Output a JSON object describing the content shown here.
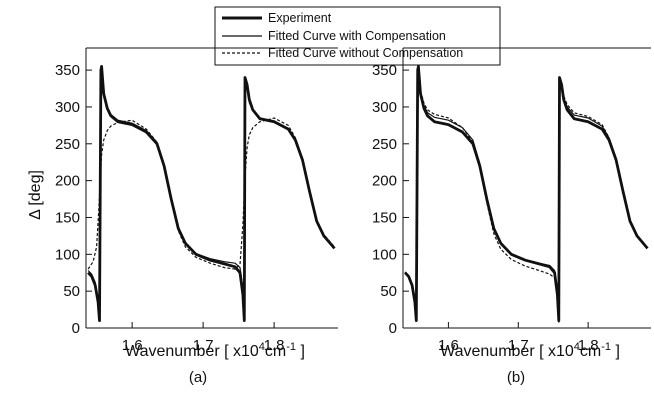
{
  "figure": {
    "legend": {
      "placement": "top-center",
      "entries": [
        {
          "label": "Experiment",
          "style": "thick-solid"
        },
        {
          "label": "Fitted Curve with Compensation",
          "style": "thin-solid"
        },
        {
          "label": "Fitted Curve without Compensation",
          "style": "dashed"
        }
      ]
    },
    "ylabel": "Δ [deg]",
    "xlabel_main": "Wavenumber [ x10",
    "xlabel_exp": "4",
    "xlabel_unit": "cm",
    "xlabel_unit_exp": "-1",
    "xlabel_close": "]"
  },
  "chart_data": [
    {
      "type": "line",
      "panel_label": "(a)",
      "xlim": [
        1.535,
        1.89
      ],
      "ylim": [
        0,
        380
      ],
      "x_ticks": [
        1.6,
        1.7,
        1.8
      ],
      "x_tick_labels": [
        "1.6",
        "1.7",
        "1.8"
      ],
      "y_ticks": [
        0,
        50,
        100,
        150,
        200,
        250,
        300,
        350
      ],
      "y_tick_labels": [
        "0",
        "50",
        "100",
        "150",
        "200",
        "250",
        "300",
        "350"
      ],
      "grid": false,
      "series": [
        {
          "name": "Experiment",
          "style": "thick-solid",
          "x": [
            1.538,
            1.543,
            1.548,
            1.552,
            1.554,
            1.556,
            1.557,
            1.56,
            1.565,
            1.57,
            1.58,
            1.6,
            1.62,
            1.635,
            1.645,
            1.655,
            1.665,
            1.675,
            1.69,
            1.71,
            1.73,
            1.745,
            1.752,
            1.756,
            1.758,
            1.759,
            1.762,
            1.765,
            1.77,
            1.78,
            1.8,
            1.82,
            1.83,
            1.84,
            1.85,
            1.86,
            1.87,
            1.885
          ],
          "y": [
            75,
            70,
            58,
            35,
            10,
            350,
            355,
            318,
            298,
            288,
            280,
            276,
            266,
            250,
            220,
            175,
            135,
            115,
            100,
            92,
            87,
            83,
            75,
            45,
            10,
            340,
            330,
            310,
            296,
            284,
            280,
            270,
            255,
            228,
            185,
            145,
            125,
            108
          ]
        },
        {
          "name": "Fitted Curve with Compensation",
          "style": "thin-solid",
          "x": [
            1.538,
            1.543,
            1.548,
            1.552,
            1.554,
            1.556,
            1.557,
            1.56,
            1.565,
            1.57,
            1.58,
            1.6,
            1.62,
            1.635,
            1.645,
            1.655,
            1.665,
            1.675,
            1.69,
            1.71,
            1.73,
            1.745,
            1.752,
            1.756,
            1.758,
            1.759,
            1.762,
            1.765,
            1.77,
            1.78,
            1.8,
            1.82,
            1.83,
            1.84,
            1.85,
            1.86,
            1.87,
            1.885
          ],
          "y": [
            78,
            73,
            62,
            40,
            15,
            345,
            350,
            322,
            300,
            290,
            282,
            278,
            268,
            252,
            222,
            177,
            137,
            116,
            101,
            94,
            90,
            88,
            82,
            55,
            20,
            335,
            326,
            306,
            295,
            285,
            281,
            271,
            256,
            229,
            187,
            146,
            126,
            109
          ]
        },
        {
          "name": "Fitted Curve without Compensation",
          "style": "dashed",
          "x": [
            1.538,
            1.545,
            1.55,
            1.553,
            1.555,
            1.557,
            1.56,
            1.565,
            1.57,
            1.58,
            1.6,
            1.62,
            1.635,
            1.645,
            1.655,
            1.665,
            1.675,
            1.69,
            1.71,
            1.73,
            1.745,
            1.752,
            1.756,
            1.759,
            1.762,
            1.765,
            1.77,
            1.78,
            1.8,
            1.82,
            1.83,
            1.84,
            1.85,
            1.86,
            1.87,
            1.885
          ],
          "y": [
            80,
            90,
            110,
            160,
            200,
            235,
            255,
            268,
            274,
            279,
            282,
            270,
            252,
            220,
            173,
            132,
            110,
            96,
            88,
            82,
            80,
            86,
            140,
            205,
            245,
            262,
            272,
            280,
            285,
            275,
            258,
            230,
            188,
            147,
            127,
            110
          ]
        }
      ]
    },
    {
      "type": "line",
      "panel_label": "(b)",
      "xlim": [
        1.535,
        1.89
      ],
      "ylim": [
        0,
        380
      ],
      "x_ticks": [
        1.6,
        1.7,
        1.8
      ],
      "x_tick_labels": [
        "1.6",
        "1.7",
        "1.8"
      ],
      "y_ticks": [
        0,
        50,
        100,
        150,
        200,
        250,
        300,
        350
      ],
      "y_tick_labels": [
        "0",
        "50",
        "100",
        "150",
        "200",
        "250",
        "300",
        "350"
      ],
      "grid": false,
      "series": [
        {
          "name": "Experiment",
          "style": "thick-solid",
          "x": [
            1.538,
            1.543,
            1.548,
            1.552,
            1.554,
            1.556,
            1.557,
            1.56,
            1.565,
            1.57,
            1.58,
            1.6,
            1.62,
            1.635,
            1.645,
            1.655,
            1.665,
            1.675,
            1.69,
            1.71,
            1.73,
            1.745,
            1.752,
            1.756,
            1.758,
            1.759,
            1.762,
            1.765,
            1.77,
            1.78,
            1.8,
            1.82,
            1.83,
            1.84,
            1.85,
            1.86,
            1.87,
            1.885
          ],
          "y": [
            75,
            70,
            58,
            35,
            10,
            350,
            355,
            318,
            298,
            288,
            280,
            276,
            266,
            250,
            220,
            175,
            135,
            115,
            100,
            92,
            87,
            83,
            75,
            45,
            10,
            340,
            330,
            310,
            296,
            284,
            280,
            270,
            255,
            228,
            185,
            145,
            125,
            108
          ]
        },
        {
          "name": "Fitted Curve with Compensation",
          "style": "thin-solid",
          "x": [
            1.538,
            1.543,
            1.548,
            1.552,
            1.554,
            1.556,
            1.557,
            1.56,
            1.565,
            1.57,
            1.58,
            1.6,
            1.62,
            1.635,
            1.645,
            1.655,
            1.665,
            1.675,
            1.69,
            1.71,
            1.73,
            1.745,
            1.752,
            1.756,
            1.758,
            1.759,
            1.762,
            1.765,
            1.77,
            1.78,
            1.8,
            1.82,
            1.83,
            1.84,
            1.85,
            1.86,
            1.87,
            1.885
          ],
          "y": [
            76,
            71,
            60,
            37,
            12,
            347,
            352,
            320,
            302,
            292,
            286,
            282,
            272,
            255,
            223,
            176,
            136,
            115,
            100,
            92,
            88,
            85,
            78,
            48,
            14,
            337,
            332,
            312,
            300,
            289,
            285,
            274,
            258,
            230,
            186,
            146,
            126,
            109
          ]
        },
        {
          "name": "Fitted Curve without Compensation",
          "style": "dashed",
          "x": [
            1.538,
            1.543,
            1.548,
            1.552,
            1.554,
            1.556,
            1.557,
            1.56,
            1.565,
            1.57,
            1.58,
            1.6,
            1.62,
            1.635,
            1.645,
            1.655,
            1.665,
            1.675,
            1.69,
            1.71,
            1.73,
            1.745,
            1.752,
            1.756,
            1.758,
            1.759,
            1.762,
            1.765,
            1.77,
            1.78,
            1.8,
            1.82,
            1.83,
            1.84,
            1.85,
            1.86,
            1.87,
            1.885
          ],
          "y": [
            76,
            71,
            60,
            37,
            12,
            345,
            350,
            322,
            305,
            296,
            290,
            285,
            272,
            252,
            218,
            170,
            128,
            107,
            93,
            84,
            78,
            73,
            68,
            40,
            8,
            333,
            332,
            315,
            303,
            292,
            287,
            276,
            258,
            228,
            184,
            145,
            125,
            108
          ]
        }
      ]
    }
  ]
}
